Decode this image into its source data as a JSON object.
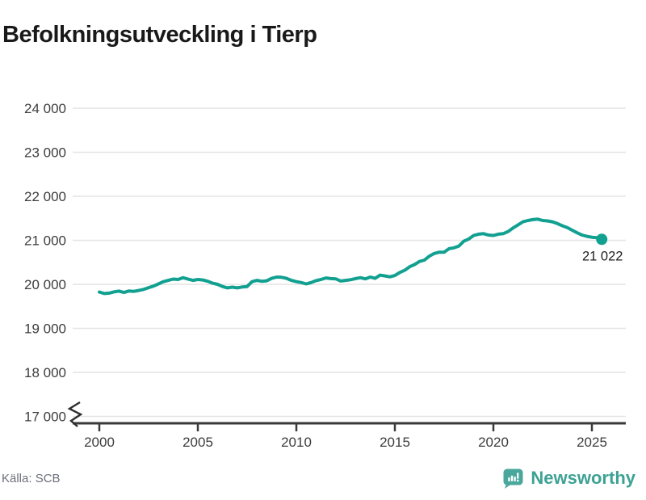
{
  "title": "Befolkningsutveckling i Tierp",
  "source": "Källa: SCB",
  "brand": {
    "name": "Newsworthy",
    "logo_icon": "bar-chart-speech-bubble",
    "color": "#3da294",
    "logo_fill": "#4aa79b"
  },
  "chart_data": {
    "type": "line",
    "title": "Befolkningsutveckling i Tierp",
    "xlabel": "",
    "ylabel": "",
    "ylim": [
      17000,
      24000
    ],
    "axis_break_at_bottom": true,
    "grid": "horizontal",
    "line_color": "#12a091",
    "end_dot": true,
    "end_label": "21 022",
    "end_value": 21022,
    "y_ticks": [
      24000,
      23000,
      22000,
      21000,
      20000,
      19000,
      18000,
      17000
    ],
    "y_tick_labels": [
      "24 000",
      "23 000",
      "22 000",
      "21 000",
      "20 000",
      "19 000",
      "18 000",
      "17 000"
    ],
    "x_ticks": [
      2000,
      2005,
      2010,
      2015,
      2020,
      2025
    ],
    "x_tick_labels": [
      "2000",
      "2005",
      "2010",
      "2015",
      "2020",
      "2025"
    ],
    "series": [
      {
        "name": "Befolkning i Tierp",
        "x_start": 2000.0,
        "x_step": 0.25,
        "values": [
          19825,
          19790,
          19800,
          19830,
          19845,
          19815,
          19850,
          19840,
          19860,
          19885,
          19925,
          19960,
          20010,
          20060,
          20090,
          20120,
          20110,
          20150,
          20120,
          20090,
          20110,
          20100,
          20070,
          20025,
          20000,
          19950,
          19920,
          19935,
          19920,
          19940,
          19950,
          20060,
          20090,
          20070,
          20080,
          20135,
          20165,
          20160,
          20135,
          20090,
          20060,
          20040,
          20010,
          20040,
          20085,
          20110,
          20145,
          20130,
          20125,
          20075,
          20090,
          20105,
          20130,
          20150,
          20125,
          20165,
          20135,
          20210,
          20190,
          20170,
          20200,
          20270,
          20320,
          20400,
          20450,
          20520,
          20550,
          20640,
          20700,
          20730,
          20730,
          20810,
          20830,
          20870,
          20980,
          21030,
          21110,
          21140,
          21150,
          21120,
          21110,
          21140,
          21150,
          21200,
          21280,
          21350,
          21420,
          21450,
          21470,
          21480,
          21450,
          21440,
          21420,
          21380,
          21330,
          21290,
          21230,
          21170,
          21120,
          21090,
          21070,
          21060,
          21022
        ]
      }
    ]
  }
}
